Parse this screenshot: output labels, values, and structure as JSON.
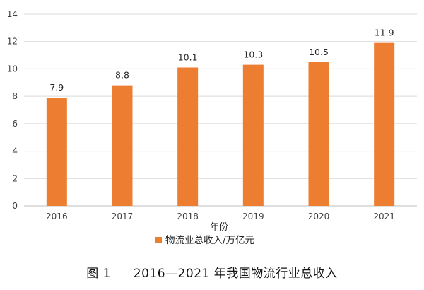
{
  "chart_data": {
    "type": "bar",
    "categories": [
      "2016",
      "2017",
      "2018",
      "2019",
      "2020",
      "2021"
    ],
    "values": [
      7.9,
      8.8,
      10.1,
      10.3,
      10.5,
      11.9
    ],
    "data_labels": [
      "7.9",
      "8.8",
      "10.1",
      "10.3",
      "10.5",
      "11.9"
    ],
    "xlabel": "年份",
    "ylabel": "",
    "ylim": [
      0,
      14
    ],
    "yticks": [
      0,
      2,
      4,
      6,
      8,
      10,
      12,
      14
    ],
    "grid": true,
    "legend": {
      "placement": "bottom-left",
      "label": "物流业总收入/万亿元"
    },
    "series": [
      {
        "name": "物流业总收入/万亿元",
        "color": "#ed7d31",
        "values": [
          7.9,
          8.8,
          10.1,
          10.3,
          10.5,
          11.9
        ]
      }
    ]
  },
  "caption": {
    "label": "图 1",
    "text": "2016—2021 年我国物流行业总收入"
  }
}
